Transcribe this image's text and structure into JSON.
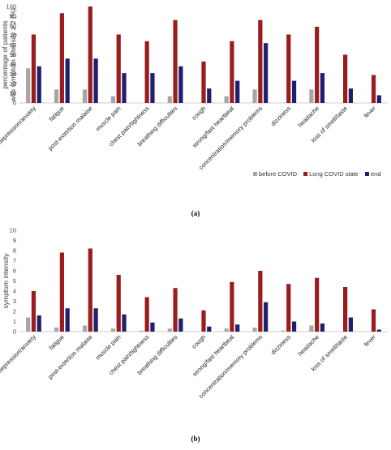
{
  "legend": [
    "before COVID",
    "Long COVID state",
    "end"
  ],
  "colors": {
    "before": "#a6a6a6",
    "long": "#9b1c1c",
    "end": "#1f1f6e"
  },
  "chart_data": [
    {
      "type": "bar",
      "panel_label": "(a)",
      "ylabel_line1": "percentage of patients",
      "ylabel_line2": "with symptom intensity ≥ 2 (%)",
      "ylim": [
        0,
        100
      ],
      "ytick_step": 10,
      "grid": false,
      "legend_position": "bottom-right",
      "categories": [
        "depression/anxiety",
        "fatigue",
        "post-extertion malaise",
        "muscle pain",
        "chest pain/tightness",
        "breathing difficulties",
        "cough",
        "strong/fast heartbeat",
        "concentration/memory problems",
        "dizziness",
        "headache",
        "loss of smell/taste",
        "fever"
      ],
      "series": [
        {
          "name": "before COVID",
          "values": [
            36,
            14,
            14,
            7,
            0,
            7,
            0,
            7,
            14,
            0,
            14,
            0,
            0
          ]
        },
        {
          "name": "Long COVID state",
          "values": [
            71,
            93,
            100,
            71,
            64,
            86,
            43,
            64,
            86,
            71,
            79,
            50,
            29
          ]
        },
        {
          "name": "end",
          "values": [
            38,
            46,
            46,
            31,
            31,
            38,
            15,
            23,
            62,
            23,
            31,
            15,
            8
          ]
        }
      ]
    },
    {
      "type": "bar",
      "panel_label": "(b)",
      "ylabel_line1": "symptom intensity",
      "ylabel_line2": "",
      "ylim": [
        0,
        10
      ],
      "ytick_step": 1,
      "grid": false,
      "legend_position": "none",
      "categories": [
        "depression/anxiety",
        "fatigue",
        "post-extertion malaise",
        "muscle pain",
        "chest pain/tightness",
        "breathing difficulties",
        "cough",
        "strong/fast heartbeat",
        "concentration/memory problems",
        "dizziness",
        "headache",
        "loss of smell/taste",
        "fever"
      ],
      "series": [
        {
          "name": "before COVID",
          "values": [
            1.4,
            0.4,
            0.6,
            0.3,
            0.1,
            0.3,
            0.0,
            0.3,
            0.4,
            0.1,
            0.6,
            0.0,
            0.0
          ]
        },
        {
          "name": "Long COVID state",
          "values": [
            4.0,
            7.8,
            8.2,
            5.6,
            3.4,
            4.3,
            2.1,
            4.9,
            6.0,
            4.7,
            5.3,
            4.4,
            2.2
          ]
        },
        {
          "name": "end",
          "values": [
            1.6,
            2.3,
            2.3,
            1.7,
            0.9,
            1.3,
            0.5,
            0.7,
            2.9,
            1.0,
            0.8,
            1.4,
            0.2
          ]
        }
      ]
    }
  ]
}
